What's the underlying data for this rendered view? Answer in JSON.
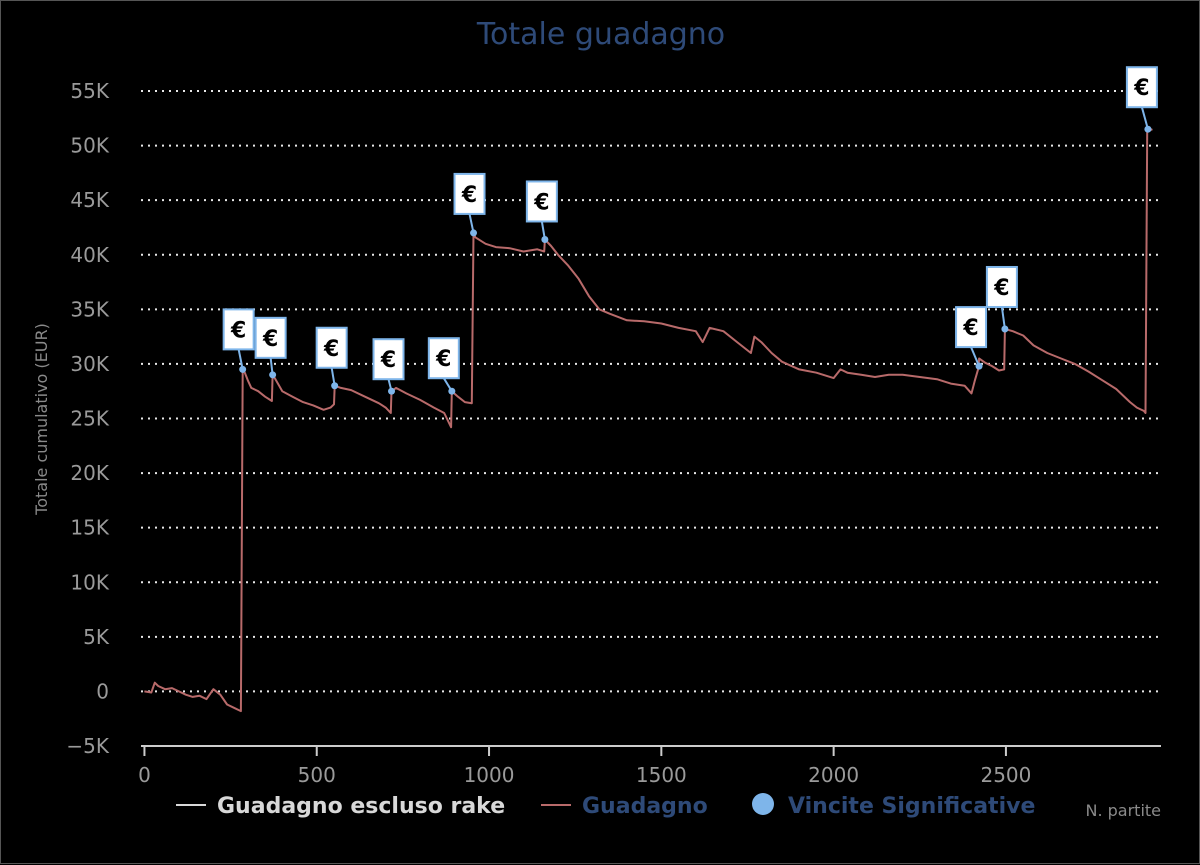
{
  "chart_data": {
    "type": "line",
    "title": "Totale guadagno",
    "xlabel": "N. partite",
    "ylabel": "Totale cumulativo (EUR)",
    "xlim": [
      -10,
      2950
    ],
    "ylim": [
      -5000,
      55000
    ],
    "x_ticks": [
      0,
      500,
      1000,
      1500,
      2000,
      2500
    ],
    "x_tick_labels": [
      "0",
      "500",
      "1000",
      "1500",
      "2000",
      "2500"
    ],
    "y_ticks": [
      -5000,
      0,
      5000,
      10000,
      15000,
      20000,
      25000,
      30000,
      35000,
      40000,
      45000,
      50000,
      55000
    ],
    "y_tick_labels": [
      "−5K",
      "0",
      "5K",
      "10K",
      "15K",
      "20K",
      "25K",
      "30K",
      "35K",
      "40K",
      "45K",
      "50K",
      "55K"
    ],
    "grid": "horizontal dotted",
    "legend": "bottom",
    "series": [
      {
        "name": "Guadagno escluso rake",
        "color": "#d8d8d8",
        "x": [],
        "y": []
      },
      {
        "name": "Guadagno",
        "color": "#b86a6a",
        "x": [
          0,
          20,
          30,
          40,
          60,
          80,
          100,
          120,
          140,
          160,
          180,
          200,
          220,
          240,
          260,
          280,
          285,
          290,
          300,
          310,
          330,
          350,
          370,
          372,
          380,
          400,
          430,
          460,
          490,
          520,
          540,
          550,
          552,
          570,
          600,
          640,
          680,
          700,
          715,
          717,
          730,
          760,
          800,
          840,
          870,
          890,
          892,
          910,
          930,
          950,
          955,
          960,
          990,
          1020,
          1060,
          1100,
          1140,
          1160,
          1162,
          1180,
          1200,
          1230,
          1260,
          1290,
          1320,
          1350,
          1400,
          1450,
          1500,
          1550,
          1600,
          1620,
          1640,
          1680,
          1720,
          1760,
          1770,
          1790,
          1820,
          1850,
          1900,
          1950,
          2000,
          2020,
          2040,
          2080,
          2120,
          2160,
          2200,
          2250,
          2300,
          2340,
          2380,
          2400,
          2410,
          2420,
          2422,
          2440,
          2460,
          2480,
          2495,
          2497,
          2520,
          2550,
          2580,
          2620,
          2660,
          2700,
          2740,
          2780,
          2820,
          2860,
          2880,
          2900,
          2905,
          2910,
          2925
        ],
        "y": [
          0,
          -100,
          800,
          500,
          200,
          300,
          0,
          -300,
          -500,
          -400,
          -700,
          200,
          -300,
          -1200,
          -1500,
          -1800,
          29500,
          29300,
          28500,
          27800,
          27500,
          27000,
          26600,
          29000,
          28600,
          27500,
          27000,
          26500,
          26200,
          25800,
          26000,
          26300,
          28000,
          27800,
          27600,
          27000,
          26400,
          26000,
          25500,
          27500,
          27800,
          27300,
          26700,
          26000,
          25500,
          24200,
          27500,
          27000,
          26500,
          26400,
          42000,
          41600,
          41000,
          40700,
          40600,
          40300,
          40500,
          40300,
          41400,
          40800,
          40000,
          39000,
          37800,
          36200,
          35000,
          34600,
          34000,
          33900,
          33700,
          33300,
          33000,
          32000,
          33300,
          33000,
          32000,
          31000,
          32500,
          32000,
          31000,
          30200,
          29500,
          29200,
          28700,
          29500,
          29200,
          29000,
          28800,
          29000,
          29000,
          28800,
          28600,
          28200,
          28000,
          27300,
          28500,
          29600,
          30500,
          30100,
          29800,
          29400,
          29500,
          33200,
          33000,
          32600,
          31700,
          31000,
          30500,
          30000,
          29300,
          28500,
          27700,
          26500,
          26000,
          25700,
          25500,
          51300,
          51500
        ]
      },
      {
        "name": "Vincite Significative",
        "color": "#7eb5ea",
        "x": [
          285,
          372,
          552,
          717,
          892,
          955,
          1162,
          2422,
          2497,
          2912
        ],
        "y": [
          29500,
          29000,
          28000,
          27500,
          27500,
          42000,
          41400,
          29800,
          33200,
          51500
        ],
        "flag_label": "€"
      }
    ]
  }
}
